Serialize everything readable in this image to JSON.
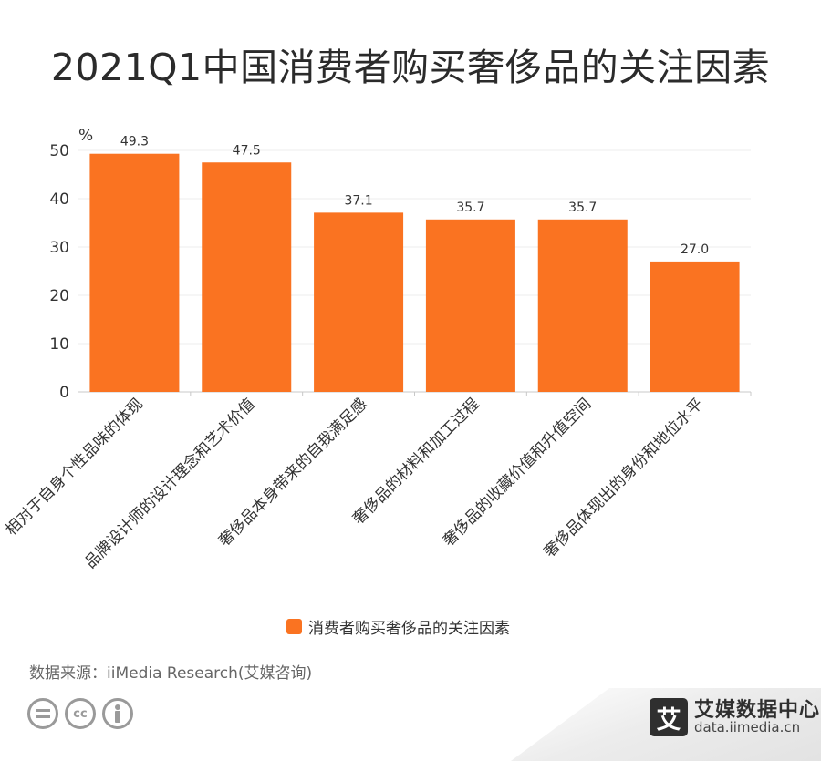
{
  "title": "2021Q1中国消费者购买奢侈品的关注因素",
  "chart_data": {
    "type": "bar",
    "categories": [
      "相对于自身个性品味的体现",
      "品牌设计师的设计理念和艺术价值",
      "奢侈品本身带来的自我满足感",
      "奢侈品的材料和加工过程",
      "奢侈品的收藏价值和升值空间",
      "奢侈品体现出的身份和地位水平"
    ],
    "series": [
      {
        "name": "消费者购买奢侈品的关注因素",
        "values": [
          49.3,
          47.5,
          37.1,
          35.7,
          35.7,
          27.0
        ]
      }
    ],
    "value_labels": [
      "49.3",
      "47.5",
      "37.1",
      "35.7",
      "35.7",
      "27.0"
    ],
    "ylabel": "%",
    "ylim": [
      0,
      50
    ],
    "yticks": [
      "0",
      "10",
      "20",
      "30",
      "40",
      "50"
    ],
    "grid": true,
    "legend": "bottom-center",
    "bar_color": "#fa7321"
  },
  "legend_label": "消费者购买奢侈品的关注因素",
  "source": "数据来源：iiMedia Research(艾媒咨询)",
  "cc_icons": [
    "equals-icon",
    "cc-icon",
    "person-icon"
  ],
  "brand": {
    "logo": "艾",
    "name": "艾媒数据中心",
    "url": "data.iimedia.cn"
  }
}
